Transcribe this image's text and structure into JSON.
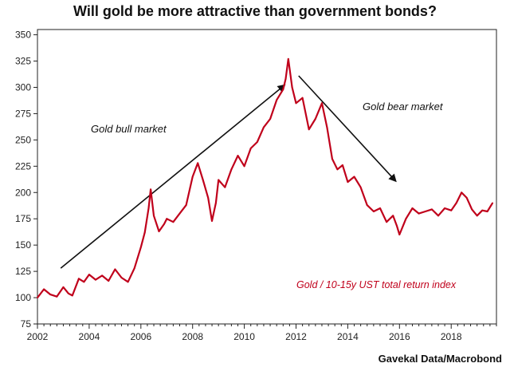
{
  "chart_data": {
    "type": "line",
    "title": "Will gold be more attractive than government bonds?",
    "xlabel": "",
    "ylabel": "",
    "xlim": [
      2002,
      2019.75
    ],
    "ylim": [
      75,
      355
    ],
    "x_ticks": [
      2002,
      2004,
      2006,
      2008,
      2010,
      2012,
      2014,
      2016,
      2018
    ],
    "x_tick_labels": [
      "2002",
      "2004",
      "2006",
      "2008",
      "2010",
      "2012",
      "2014",
      "2016",
      "2018"
    ],
    "y_ticks": [
      75,
      100,
      125,
      150,
      175,
      200,
      225,
      250,
      275,
      300,
      325,
      350
    ],
    "y_tick_labels": [
      "75",
      "100",
      "125",
      "150",
      "175",
      "200",
      "225",
      "250",
      "275",
      "300",
      "325",
      "350"
    ],
    "grid": false,
    "series": [
      {
        "name": "Gold / 10-15y UST total return index",
        "color": "#c0001b",
        "x": [
          2002.0,
          2002.25,
          2002.5,
          2002.75,
          2003.0,
          2003.2,
          2003.35,
          2003.6,
          2003.8,
          2004.0,
          2004.25,
          2004.5,
          2004.75,
          2005.0,
          2005.25,
          2005.5,
          2005.75,
          2006.0,
          2006.15,
          2006.3,
          2006.38,
          2006.5,
          2006.7,
          2006.9,
          2007.0,
          2007.25,
          2007.5,
          2007.75,
          2008.0,
          2008.2,
          2008.4,
          2008.6,
          2008.75,
          2008.9,
          2009.0,
          2009.25,
          2009.5,
          2009.75,
          2010.0,
          2010.25,
          2010.5,
          2010.75,
          2011.0,
          2011.25,
          2011.5,
          2011.6,
          2011.7,
          2011.85,
          2012.0,
          2012.25,
          2012.5,
          2012.75,
          2013.0,
          2013.2,
          2013.4,
          2013.6,
          2013.8,
          2014.0,
          2014.25,
          2014.5,
          2014.75,
          2015.0,
          2015.25,
          2015.5,
          2015.75,
          2015.9,
          2016.0,
          2016.25,
          2016.5,
          2016.75,
          2017.0,
          2017.25,
          2017.5,
          2017.75,
          2018.0,
          2018.2,
          2018.4,
          2018.6,
          2018.8,
          2019.0,
          2019.2,
          2019.4,
          2019.6
        ],
        "y": [
          100,
          108,
          103,
          101,
          110,
          104,
          102,
          118,
          115,
          122,
          117,
          121,
          116,
          127,
          119,
          115,
          128,
          148,
          162,
          185,
          203,
          178,
          163,
          170,
          175,
          172,
          180,
          188,
          215,
          228,
          212,
          195,
          173,
          190,
          212,
          205,
          222,
          235,
          225,
          242,
          248,
          262,
          270,
          288,
          298,
          308,
          327,
          300,
          285,
          290,
          260,
          270,
          285,
          262,
          232,
          222,
          226,
          210,
          215,
          205,
          188,
          182,
          185,
          172,
          178,
          168,
          160,
          175,
          185,
          180,
          182,
          184,
          178,
          185,
          183,
          190,
          200,
          195,
          184,
          178,
          183,
          182,
          190
        ]
      }
    ],
    "annotations": [
      {
        "text": "Gold bull market"
      },
      {
        "text": "Gold bear market"
      },
      {
        "text": "Gold / 10-15y UST total return index"
      }
    ],
    "arrows": [
      {
        "from": [
          2002.9,
          128
        ],
        "to": [
          2011.55,
          302
        ]
      },
      {
        "from": [
          2012.1,
          311
        ],
        "to": [
          2015.85,
          211
        ]
      }
    ]
  },
  "source": "Gavekal Data/Macrobond"
}
